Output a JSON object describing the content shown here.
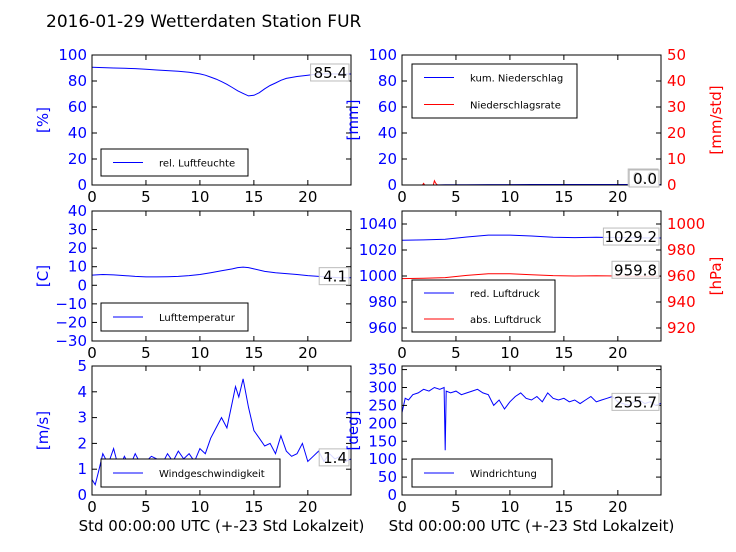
{
  "title": "2016-01-29 Wetterdaten Station FUR",
  "colors": {
    "primary": "#0000ff",
    "secondary": "#ff0000",
    "axis": "#000000"
  },
  "chart_data": [
    {
      "type": "line",
      "id": "humidity",
      "ylabel": "[%]",
      "xlabel": "",
      "xlim": [
        0,
        24
      ],
      "ylim": [
        0,
        100
      ],
      "yticks": [
        0,
        20,
        40,
        60,
        80,
        100
      ],
      "xticks": [
        0,
        5,
        10,
        15,
        20
      ],
      "current_value": "85.4",
      "legend_position": "lower-left",
      "series": [
        {
          "name": "rel. Luftfeuchte",
          "color": "#0000ff",
          "x": [
            0,
            1,
            2,
            3,
            4,
            5,
            6,
            7,
            8,
            9,
            10,
            10.5,
            11,
            11.5,
            12,
            12.5,
            13,
            13.5,
            14,
            14.5,
            15,
            15.5,
            16,
            16.5,
            17,
            17.5,
            18,
            19,
            20,
            21,
            22,
            23,
            24
          ],
          "y": [
            90.5,
            90.3,
            90.0,
            89.8,
            89.5,
            89.0,
            88.5,
            88.0,
            87.5,
            86.8,
            85.5,
            84.5,
            83.0,
            81.5,
            79.5,
            77.5,
            75.0,
            72.5,
            70.5,
            68.5,
            69.0,
            71.0,
            74.0,
            76.5,
            78.5,
            80.5,
            82.0,
            83.5,
            84.5,
            85.5,
            85.5,
            85.4,
            85.4
          ]
        }
      ]
    },
    {
      "type": "line",
      "id": "precipitation",
      "ylabel": "[mm]",
      "ylabel_right": "[mm/std]",
      "xlabel": "",
      "xlim": [
        0,
        24
      ],
      "ylim": [
        0,
        100
      ],
      "ylim_right": [
        0,
        50
      ],
      "yticks": [
        0,
        20,
        40,
        60,
        80,
        100
      ],
      "yticks_right": [
        0,
        10,
        20,
        30,
        40,
        50
      ],
      "xticks": [
        0,
        5,
        10,
        15,
        20
      ],
      "current_value": "0.0",
      "current_value_right": "0.0",
      "legend_position": "upper-left",
      "series": [
        {
          "name": "kum. Niederschlag",
          "axis": "left",
          "color": "#0000ff",
          "x": [
            0,
            2,
            3,
            4,
            6,
            8,
            10,
            12,
            14,
            16,
            18,
            20,
            22,
            24
          ],
          "y": [
            0,
            0,
            0,
            0.2,
            0.2,
            0.3,
            0.3,
            0.4,
            0.4,
            0.4,
            0.4,
            0.4,
            0.4,
            0.4
          ]
        },
        {
          "name": "Niederschlagsrate",
          "axis": "right",
          "color": "#ff0000",
          "x": [
            0,
            1.9,
            2.0,
            2.1,
            2.9,
            3.0,
            3.1,
            3.2,
            3.3,
            4,
            24
          ],
          "y": [
            0,
            0,
            0.6,
            0,
            0,
            1.6,
            0.8,
            0.3,
            0,
            0,
            0
          ]
        }
      ]
    },
    {
      "type": "line",
      "id": "temperature",
      "ylabel": "[C]",
      "xlabel": "",
      "xlim": [
        0,
        24
      ],
      "ylim": [
        -30,
        40
      ],
      "yticks": [
        -30,
        -20,
        -10,
        0,
        10,
        20,
        30,
        40
      ],
      "xticks": [
        0,
        5,
        10,
        15,
        20
      ],
      "current_value": "4.1",
      "legend_position": "lower-left",
      "series": [
        {
          "name": "Lufttemperatur",
          "color": "#0000ff",
          "x": [
            0,
            1,
            2,
            3,
            4,
            5,
            6,
            7,
            8,
            9,
            10,
            11,
            12,
            13,
            13.5,
            14,
            14.5,
            15,
            16,
            17,
            18,
            19,
            20,
            21,
            22,
            23,
            24
          ],
          "y": [
            5.5,
            5.8,
            5.6,
            5.2,
            4.8,
            4.5,
            4.5,
            4.6,
            4.8,
            5.2,
            5.8,
            6.8,
            7.8,
            8.8,
            9.5,
            9.8,
            9.5,
            8.8,
            7.5,
            6.8,
            6.3,
            5.8,
            5.2,
            4.8,
            4.4,
            4.1,
            4.1
          ]
        }
      ]
    },
    {
      "type": "line",
      "id": "pressure",
      "ylabel": "",
      "ylabel_right": "[hPa]",
      "xlabel": "",
      "xlim": [
        0,
        24
      ],
      "ylim": [
        950,
        1050
      ],
      "ylim_right": [
        910,
        1010
      ],
      "yticks": [
        960,
        980,
        1000,
        1020,
        1040
      ],
      "yticks_right": [
        920,
        940,
        960,
        980,
        1000
      ],
      "xticks": [
        0,
        5,
        10,
        15,
        20
      ],
      "current_value": "1029.2",
      "current_value_right": "959.8",
      "legend_position": "lower-left",
      "series": [
        {
          "name": "red. Luftdruck",
          "axis": "left",
          "color": "#0000ff",
          "x": [
            0,
            2,
            4,
            6,
            8,
            10,
            12,
            14,
            16,
            18,
            20,
            22,
            24
          ],
          "y": [
            1027.5,
            1027.8,
            1028.3,
            1030.0,
            1031.5,
            1031.5,
            1030.8,
            1029.8,
            1029.5,
            1029.8,
            1029.5,
            1029.3,
            1029.2
          ]
        },
        {
          "name": "abs. Luftdruck",
          "axis": "right",
          "color": "#ff0000",
          "x": [
            0,
            2,
            4,
            6,
            8,
            10,
            12,
            14,
            16,
            18,
            20,
            22,
            24
          ],
          "y": [
            958.0,
            958.2,
            958.8,
            960.5,
            961.8,
            961.8,
            961.0,
            960.3,
            960.0,
            960.2,
            960.0,
            959.8,
            959.8
          ]
        }
      ]
    },
    {
      "type": "line",
      "id": "wind_speed",
      "ylabel": "[m/s]",
      "xlabel": "Std 00:00:00 UTC (+-23 Std Lokalzeit)",
      "xlim": [
        0,
        24
      ],
      "ylim": [
        0,
        5
      ],
      "yticks": [
        0,
        1,
        2,
        3,
        4,
        5
      ],
      "xticks": [
        0,
        5,
        10,
        15,
        20
      ],
      "current_value": "1.4",
      "legend_position": "lower-left",
      "series": [
        {
          "name": "Windgeschwindigkeit",
          "color": "#0000ff",
          "x": [
            0,
            0.3,
            0.6,
            1,
            1.5,
            2,
            2.5,
            3,
            3.5,
            4,
            4.5,
            5,
            5.5,
            6,
            6.5,
            7,
            7.5,
            8,
            8.5,
            9,
            9.5,
            10,
            10.5,
            11,
            11.5,
            12,
            12.5,
            13,
            13.3,
            13.6,
            14,
            14.5,
            15,
            15.5,
            16,
            16.5,
            17,
            17.5,
            18,
            18.5,
            19,
            19.5,
            20,
            20.5,
            21,
            21.5,
            22,
            22.5,
            23,
            23.5,
            24
          ],
          "y": [
            0.6,
            0.4,
            0.9,
            1.6,
            1.2,
            1.8,
            1.0,
            1.5,
            1.1,
            1.6,
            1.2,
            1.3,
            1.5,
            1.4,
            1.2,
            1.6,
            1.3,
            1.7,
            1.4,
            1.6,
            1.3,
            1.8,
            1.6,
            2.2,
            2.6,
            3.0,
            2.6,
            3.6,
            4.2,
            3.8,
            4.5,
            3.4,
            2.5,
            2.2,
            1.9,
            2.0,
            1.6,
            2.3,
            1.7,
            1.5,
            1.6,
            2.0,
            1.3,
            1.5,
            1.7,
            1.3,
            1.6,
            1.4,
            1.5,
            1.3,
            1.4
          ]
        }
      ]
    },
    {
      "type": "line",
      "id": "wind_direction",
      "ylabel": "[deg]",
      "xlabel": "Std 00:00:00 UTC (+-23 Std Lokalzeit)",
      "xlim": [
        0,
        24
      ],
      "ylim": [
        0,
        360
      ],
      "yticks": [
        0,
        50,
        100,
        150,
        200,
        250,
        300,
        350
      ],
      "xticks": [
        0,
        5,
        10,
        15,
        20
      ],
      "current_value": "255.7",
      "legend_position": "lower-left",
      "series": [
        {
          "name": "Windrichtung",
          "color": "#0000ff",
          "x": [
            0,
            0.3,
            0.6,
            1,
            1.5,
            2,
            2.5,
            3,
            3.5,
            3.9,
            4.0,
            4.1,
            4.5,
            5,
            5.5,
            6,
            6.5,
            7,
            7.5,
            8,
            8.5,
            9,
            9.5,
            10,
            10.5,
            11,
            11.5,
            12,
            12.5,
            13,
            13.5,
            14,
            14.5,
            15,
            15.5,
            16,
            16.5,
            17,
            17.5,
            18,
            18.5,
            19,
            19.5,
            20,
            20.5,
            21,
            21.5,
            22,
            22.5,
            23,
            23.5,
            24
          ],
          "y": [
            230,
            270,
            265,
            280,
            285,
            295,
            290,
            300,
            295,
            300,
            125,
            290,
            285,
            290,
            280,
            285,
            290,
            295,
            285,
            280,
            250,
            265,
            240,
            260,
            275,
            285,
            270,
            265,
            275,
            260,
            285,
            270,
            265,
            270,
            260,
            265,
            255,
            265,
            275,
            260,
            265,
            270,
            275,
            260,
            255,
            250,
            260,
            265,
            255,
            260,
            250,
            255.7
          ]
        }
      ]
    }
  ]
}
